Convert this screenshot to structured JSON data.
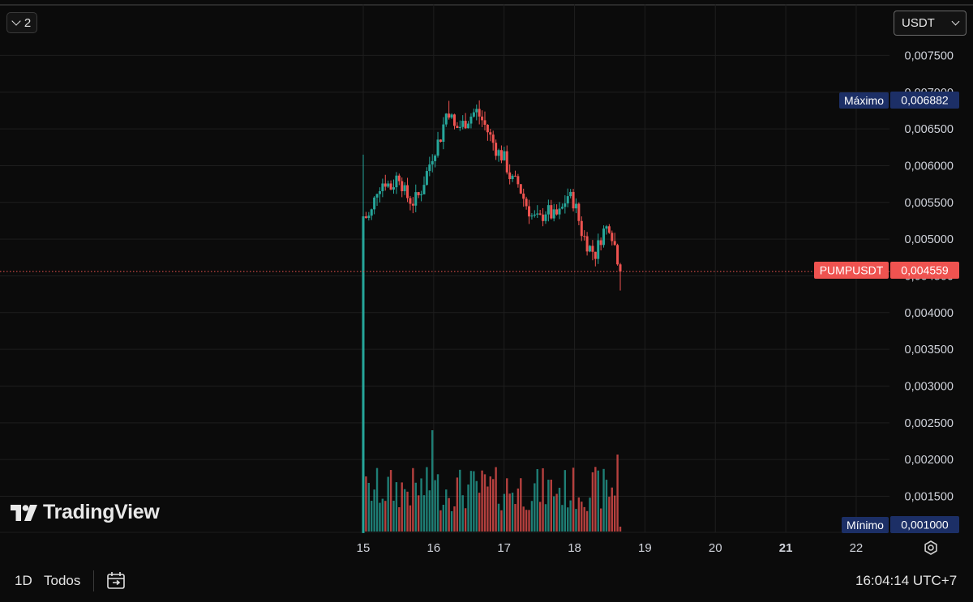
{
  "toolbar": {
    "layout_count": "2",
    "currency": "USDT"
  },
  "price_labels": {
    "high_label": "Máximo",
    "high_value": "0,006882",
    "last_label": "PUMPUSDT",
    "last_value": "0,004559",
    "low_label": "Mínimo",
    "low_value": "0,001000"
  },
  "watermark": "TradingView",
  "bottom": {
    "interval": "1D",
    "range": "Todos",
    "clock": "16:04:14 UTC+7"
  },
  "colors": {
    "up": "#26a69a",
    "down": "#ef5350",
    "grid": "#1e1e1e",
    "last_line": "#ef5350",
    "label_blue": "#1c2f66"
  },
  "icons": {
    "chevron": "chevron-down-icon",
    "compare": "date-range-icon",
    "settings": "gear-icon"
  },
  "chart_data": {
    "type": "candlestick",
    "symbol": "PUMPUSDT",
    "y_ticks": [
      "0,001500",
      "0,002000",
      "0,002500",
      "0,003000",
      "0,003500",
      "0,004000",
      "0,004500",
      "0,005000",
      "0,005500",
      "0,006000",
      "0,006500",
      "0,007000",
      "0,007500"
    ],
    "y_range": [
      0.001,
      0.0078
    ],
    "x_ticks": [
      {
        "label": "15",
        "day": 15,
        "bold": false
      },
      {
        "label": "16",
        "day": 16,
        "bold": false
      },
      {
        "label": "17",
        "day": 17,
        "bold": false
      },
      {
        "label": "18",
        "day": 18,
        "bold": false
      },
      {
        "label": "19",
        "day": 19,
        "bold": false
      },
      {
        "label": "20",
        "day": 20,
        "bold": false
      },
      {
        "label": "21",
        "day": 21,
        "bold": true
      },
      {
        "label": "22",
        "day": 22,
        "bold": false
      }
    ],
    "high": 0.006882,
    "low": 0.001,
    "last": 0.004559,
    "close_path": [
      [
        15.0,
        0.00525
      ],
      [
        15.03,
        0.0053
      ],
      [
        15.1,
        0.0053
      ],
      [
        15.2,
        0.0057
      ],
      [
        15.3,
        0.0058
      ],
      [
        15.4,
        0.0057
      ],
      [
        15.5,
        0.0059
      ],
      [
        15.6,
        0.0056
      ],
      [
        15.7,
        0.0055
      ],
      [
        15.8,
        0.0056
      ],
      [
        15.9,
        0.0059
      ],
      [
        16.0,
        0.0062
      ],
      [
        16.1,
        0.0064
      ],
      [
        16.2,
        0.0068
      ],
      [
        16.3,
        0.0065
      ],
      [
        16.4,
        0.00655
      ],
      [
        16.5,
        0.00665
      ],
      [
        16.6,
        0.00675
      ],
      [
        16.7,
        0.0066
      ],
      [
        16.8,
        0.0064
      ],
      [
        16.9,
        0.0062
      ],
      [
        17.0,
        0.0061
      ],
      [
        17.1,
        0.0058
      ],
      [
        17.2,
        0.00575
      ],
      [
        17.3,
        0.0055
      ],
      [
        17.4,
        0.0053
      ],
      [
        17.5,
        0.00525
      ],
      [
        17.6,
        0.0054
      ],
      [
        17.7,
        0.0053
      ],
      [
        17.8,
        0.00535
      ],
      [
        17.9,
        0.0056
      ],
      [
        18.0,
        0.0055
      ],
      [
        18.1,
        0.0051
      ],
      [
        18.2,
        0.0049
      ],
      [
        18.3,
        0.0048
      ],
      [
        18.4,
        0.0051
      ],
      [
        18.5,
        0.0052
      ],
      [
        18.6,
        0.0048
      ],
      [
        18.65,
        0.004559
      ]
    ],
    "volume_scale_note": "Volume bars shown at bottom, no numeric scale printed"
  }
}
